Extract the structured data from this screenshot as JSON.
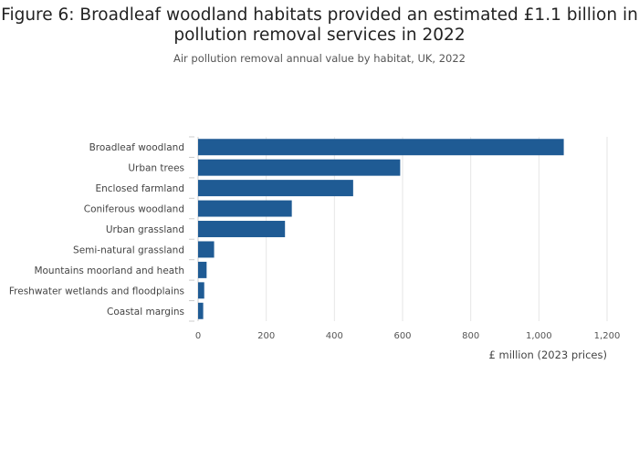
{
  "chart_data": {
    "type": "bar",
    "orientation": "horizontal",
    "title": "Figure 6: Broadleaf woodland habitats provided an estimated £1.1 billion in pollution removal services in 2022",
    "subtitle": "Air pollution removal annual value by habitat, UK, 2022",
    "xlabel": "£ million (2023 prices)",
    "ylabel": "",
    "xlim": [
      0,
      1200
    ],
    "xticks": [
      0,
      200,
      400,
      600,
      800,
      1000,
      1200
    ],
    "xtick_labels": [
      "0",
      "200",
      "400",
      "600",
      "800",
      "1,000",
      "1,200"
    ],
    "grid": true,
    "color": "#1f5b94",
    "categories": [
      "Broadleaf woodland",
      "Urban trees",
      "Enclosed farmland",
      "Coniferous woodland",
      "Urban grassland",
      "Semi-natural grassland",
      "Mountains moorland and heath",
      "Freshwater wetlands and floodplains",
      "Coastal margins"
    ],
    "values": [
      1073,
      593,
      455,
      275,
      255,
      47,
      25,
      18,
      15
    ]
  }
}
